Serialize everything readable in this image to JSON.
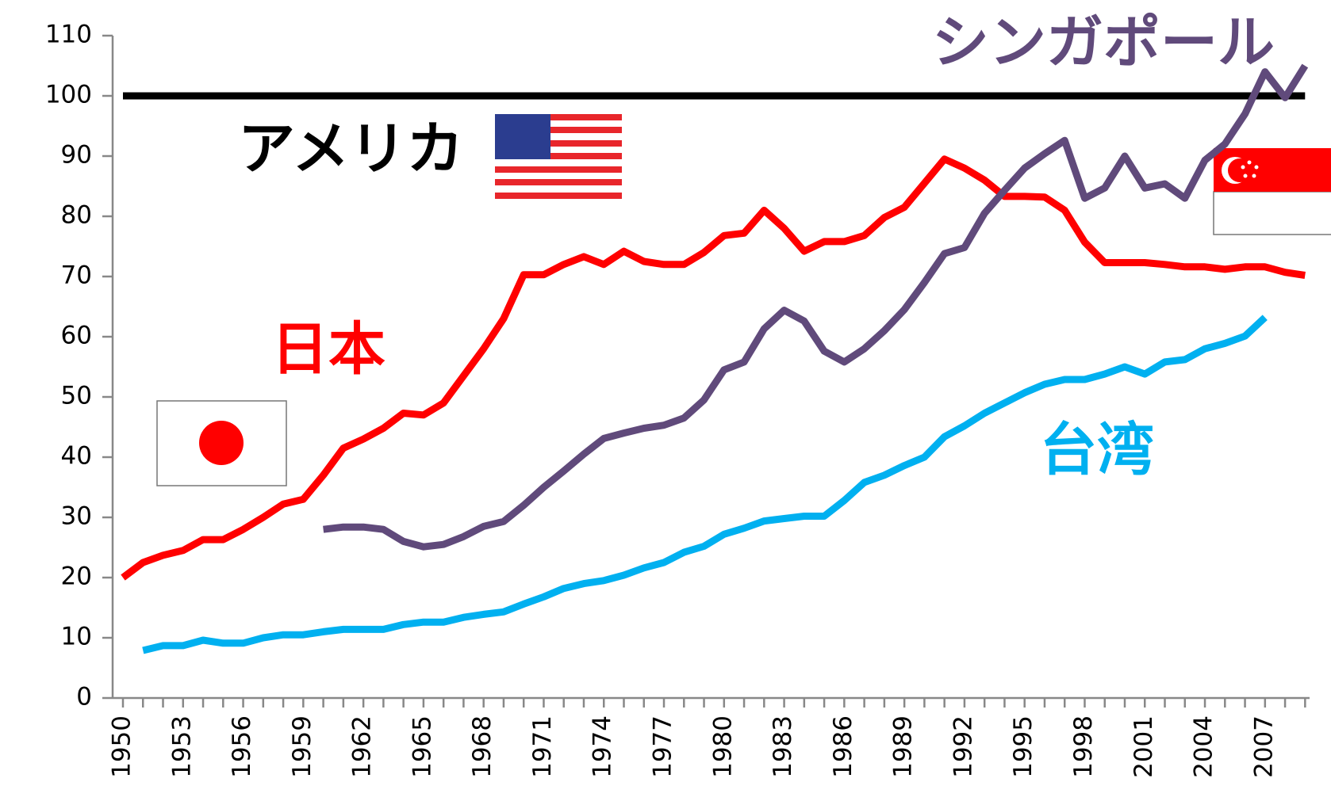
{
  "chart_data": {
    "type": "line",
    "categories": [
      "1950",
      null,
      null,
      "1953",
      null,
      null,
      "1956",
      null,
      null,
      "1959",
      null,
      null,
      "1962",
      null,
      null,
      "1965",
      null,
      null,
      "1968",
      null,
      null,
      "1971",
      null,
      null,
      "1974",
      null,
      null,
      "1977",
      null,
      null,
      "1980",
      null,
      null,
      "1983",
      null,
      null,
      "1986",
      null,
      null,
      "1989",
      null,
      null,
      "1992",
      null,
      null,
      "1995",
      null,
      null,
      "1998",
      null,
      null,
      "2001",
      null,
      null,
      "2004",
      null,
      null,
      "2007",
      null,
      null
    ],
    "series": [
      {
        "name": "アメリカ",
        "color": "#000000",
        "values": [
          100,
          100,
          100,
          100,
          100,
          100,
          100,
          100,
          100,
          100,
          100,
          100,
          100,
          100,
          100,
          100,
          100,
          100,
          100,
          100,
          100,
          100,
          100,
          100,
          100,
          100,
          100,
          100,
          100,
          100,
          100,
          100,
          100,
          100,
          100,
          100,
          100,
          100,
          100,
          100,
          100,
          100,
          100,
          100,
          100,
          100,
          100,
          100,
          100,
          100,
          100,
          100,
          100,
          100,
          100,
          100,
          100,
          100,
          100,
          100
        ]
      },
      {
        "name": "日本",
        "color": "#ff0000",
        "values": [
          20,
          22.5,
          23.7,
          24.5,
          26.3,
          26.3,
          28,
          30,
          32.2,
          33,
          37,
          41.5,
          43,
          44.8,
          47.3,
          47,
          49,
          53.5,
          58,
          63,
          70.3,
          70.3,
          72,
          73.3,
          72,
          74.2,
          72.5,
          72,
          72,
          74,
          76.8,
          77.2,
          81,
          78,
          74.2,
          75.8,
          75.8,
          76.8,
          79.8,
          81.5,
          85.5,
          89.5,
          88,
          86,
          83.3,
          83.3,
          83.2,
          81,
          75.7,
          72.3,
          72.3,
          72.3,
          72,
          71.6,
          71.6,
          71.2,
          71.6,
          71.6,
          70.7,
          70.2
        ]
      },
      {
        "name": "シンガポール",
        "color": "#604a7b",
        "values": [
          null,
          null,
          null,
          null,
          null,
          null,
          null,
          null,
          null,
          null,
          28,
          28.4,
          28.4,
          28,
          26,
          25.1,
          25.5,
          26.8,
          28.5,
          29.3,
          32,
          35,
          37.7,
          40.5,
          43.1,
          44,
          44.8,
          45.3,
          46.5,
          49.5,
          54.5,
          55.8,
          61.3,
          64.4,
          62.6,
          57.6,
          55.8,
          58,
          61,
          64.5,
          69,
          73.8,
          74.8,
          80.5,
          84.3,
          88,
          90.4,
          92.6,
          83,
          84.7,
          90,
          84.7,
          85.4,
          83,
          89.3,
          92,
          97,
          104,
          99.7,
          105
        ]
      },
      {
        "name": "台湾",
        "color": "#00b0f0",
        "values": [
          null,
          7.9,
          8.7,
          8.7,
          9.6,
          9.1,
          9.1,
          10,
          10.5,
          10.5,
          11,
          11.4,
          11.4,
          11.4,
          12.2,
          12.6,
          12.6,
          13.4,
          13.9,
          14.3,
          15.6,
          16.8,
          18.2,
          19,
          19.5,
          20.4,
          21.6,
          22.5,
          24.2,
          25.2,
          27.2,
          28.2,
          29.4,
          29.8,
          30.2,
          30.2,
          32.8,
          35.8,
          37,
          38.6,
          40,
          43.4,
          45.2,
          47.3,
          49,
          50.7,
          52.1,
          52.9,
          52.9,
          53.8,
          55,
          53.8,
          55.8,
          56.2,
          58,
          58.9,
          60.1,
          63.2,
          null,
          null
        ]
      }
    ],
    "ylim": [
      0,
      110
    ],
    "yticks": [
      0,
      10,
      20,
      30,
      40,
      50,
      60,
      70,
      80,
      90,
      100,
      110
    ]
  }
}
